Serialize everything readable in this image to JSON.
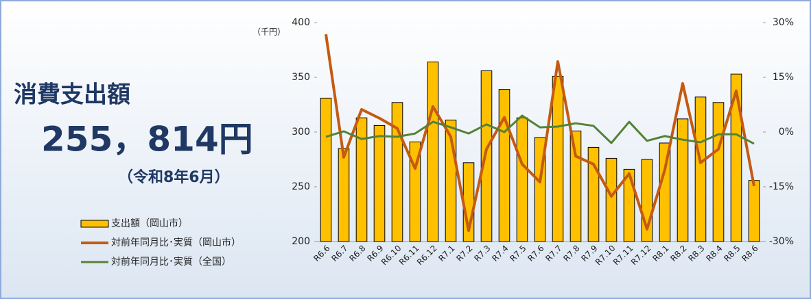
{
  "summary": {
    "heading": "消費支出額",
    "amount": "255，814円",
    "period": "（令和8年6月）"
  },
  "chart_data": {
    "type": "bar",
    "y_label": "（千円）",
    "categories": [
      "R6.6",
      "R6.7",
      "R6.8",
      "R6.9",
      "R6.10",
      "R6.11",
      "R6.12",
      "R7.1",
      "R7.2",
      "R7.3",
      "R7.4",
      "R7.5",
      "R7.6",
      "R7.7",
      "R7.8",
      "R7.9",
      "R7.10",
      "R7.11",
      "R7.12",
      "R8.1",
      "R8.2",
      "R8.3",
      "R8.4",
      "R8.5",
      "R8.6"
    ],
    "ylim": [
      200,
      400
    ],
    "yticks": [
      200,
      250,
      300,
      350,
      400
    ],
    "y2lim": [
      -30,
      30
    ],
    "y2ticks": [
      {
        "value": -30,
        "label": "-30%"
      },
      {
        "value": -15,
        "label": "-15%"
      },
      {
        "value": 0,
        "label": "0%"
      },
      {
        "value": 15,
        "label": "15%"
      },
      {
        "value": 30,
        "label": "30%"
      }
    ],
    "series": [
      {
        "name": "支出額（岡山市）",
        "type": "bar",
        "color": "#ffc000",
        "values": [
          331,
          285,
          313,
          306,
          327,
          291,
          364,
          311,
          272,
          356,
          339,
          313,
          295,
          351,
          301,
          286,
          276,
          266,
          275,
          290,
          312,
          332,
          327,
          353,
          255.814
        ]
      },
      {
        "name": "対前年同月比･実質（岡山市）",
        "type": "line",
        "axis": "y2",
        "color": "#c55a11",
        "values": [
          26.8,
          -6.9,
          6.2,
          3.8,
          1,
          -10,
          7,
          -1.3,
          -27,
          -4.7,
          4,
          -8.8,
          -13.7,
          19.3,
          -6.6,
          -8.8,
          -17.6,
          -11.4,
          -26.6,
          -10.3,
          13.3,
          -8.4,
          -4.7,
          11.3,
          -14.8
        ]
      },
      {
        "name": "対前年同月比･実質（全国）",
        "type": "line",
        "axis": "y2",
        "color": "#548235",
        "values": [
          -1.3,
          0.2,
          -1.9,
          -1.1,
          -1.3,
          -0.4,
          2.8,
          1.3,
          -0.4,
          2.1,
          0,
          4.5,
          1.3,
          1.5,
          2.4,
          1.7,
          -3,
          2.8,
          -2.4,
          -1.1,
          -2.1,
          -2.8,
          -0.6,
          -0.6,
          -3.2
        ]
      }
    ]
  }
}
